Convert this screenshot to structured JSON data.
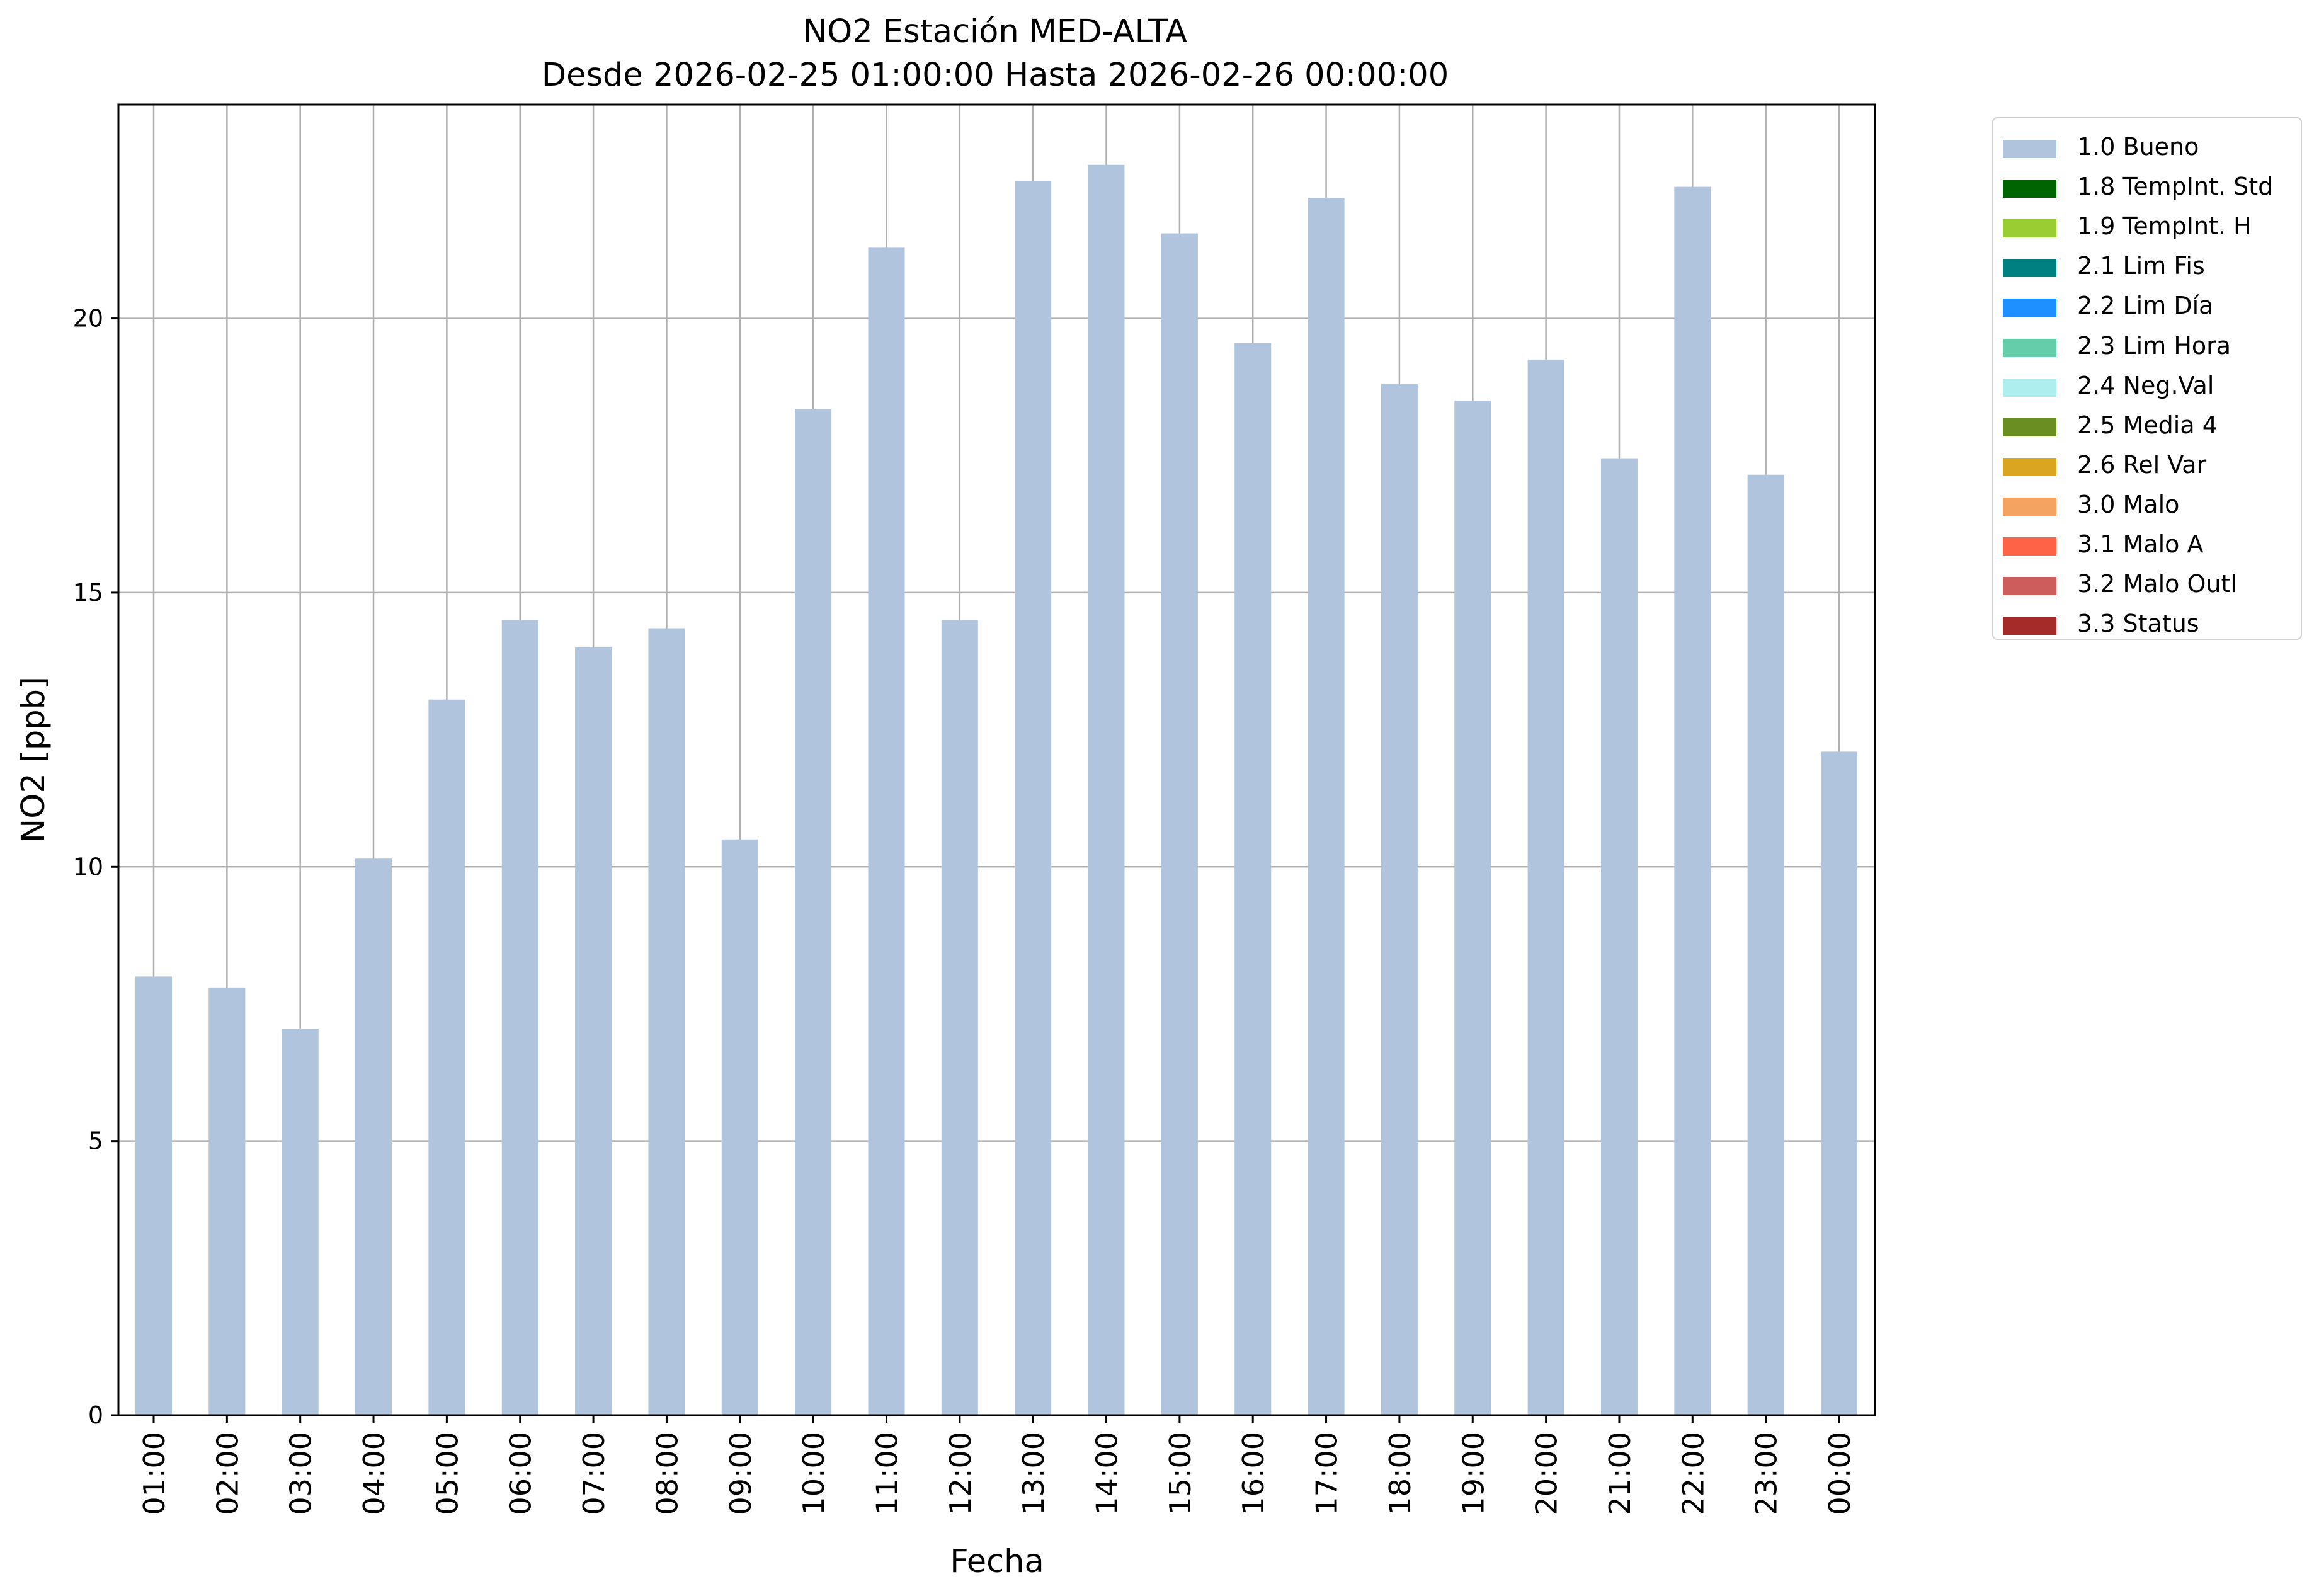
{
  "chart_data": {
    "type": "bar",
    "title": "NO2 Estación MED-ALTA",
    "subtitle": "Desde 2026-02-25 01:00:00 Hasta 2026-02-26 00:00:00",
    "xlabel": "Fecha",
    "ylabel": "NO2 [ppb]",
    "ylim": [
      0,
      23.9
    ],
    "yticks": [
      0,
      5,
      10,
      15,
      20
    ],
    "grid": true,
    "legend_position": "outside-top-right",
    "categories": [
      "01:00",
      "02:00",
      "03:00",
      "04:00",
      "05:00",
      "06:00",
      "07:00",
      "08:00",
      "09:00",
      "10:00",
      "11:00",
      "12:00",
      "13:00",
      "14:00",
      "15:00",
      "16:00",
      "17:00",
      "18:00",
      "19:00",
      "20:00",
      "21:00",
      "22:00",
      "23:00",
      "00:00"
    ],
    "series": [
      {
        "name": "1.0 Bueno",
        "color": "#b0c4de",
        "values": [
          8.0,
          7.8,
          7.05,
          10.15,
          13.05,
          14.5,
          14.0,
          14.35,
          10.5,
          18.35,
          21.3,
          14.5,
          22.5,
          22.8,
          21.55,
          19.55,
          22.2,
          18.8,
          18.5,
          19.25,
          17.45,
          22.4,
          17.15,
          12.1
        ]
      }
    ],
    "legend": [
      {
        "label": "1.0 Bueno",
        "color": "#b0c4de"
      },
      {
        "label": "1.8 TempInt. Std",
        "color": "#006400"
      },
      {
        "label": "1.9 TempInt. H",
        "color": "#9acd32"
      },
      {
        "label": "2.1 Lim Fis",
        "color": "#008080"
      },
      {
        "label": "2.2 Lim Día",
        "color": "#1e90ff"
      },
      {
        "label": "2.3 Lim Hora",
        "color": "#66cdaa"
      },
      {
        "label": "2.4 Neg.Val",
        "color": "#afeeee"
      },
      {
        "label": "2.5 Media 4",
        "color": "#6b8e23"
      },
      {
        "label": "2.6 Rel Var",
        "color": "#daa520"
      },
      {
        "label": "3.0 Malo",
        "color": "#f4a460"
      },
      {
        "label": "3.1 Malo A",
        "color": "#ff6347"
      },
      {
        "label": "3.2 Malo Outl",
        "color": "#cd5c5c"
      },
      {
        "label": "3.3 Status",
        "color": "#a52a2a"
      }
    ]
  }
}
